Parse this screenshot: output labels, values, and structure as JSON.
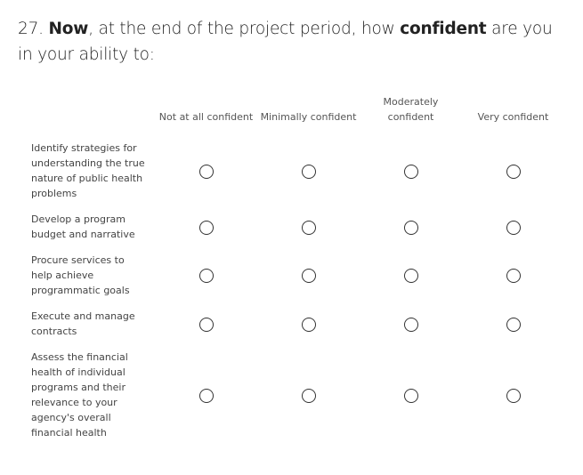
{
  "question": {
    "segments": [
      "27. ",
      "Now",
      ", at the end of the project period, how ",
      "confident",
      " are you in your ability to:"
    ]
  },
  "table": {
    "columns": [
      "Not at all confident",
      "Minimally confident",
      "Moderately confident",
      "Very confident"
    ],
    "rows": [
      "Identify strategies for understanding the true nature of public health problems",
      "Develop a program budget and narrative",
      "Procure services to help achieve programmatic goals",
      "Execute and manage contracts",
      "Assess the financial health of individual programs and their relevance to your agency's overall financial health"
    ]
  }
}
